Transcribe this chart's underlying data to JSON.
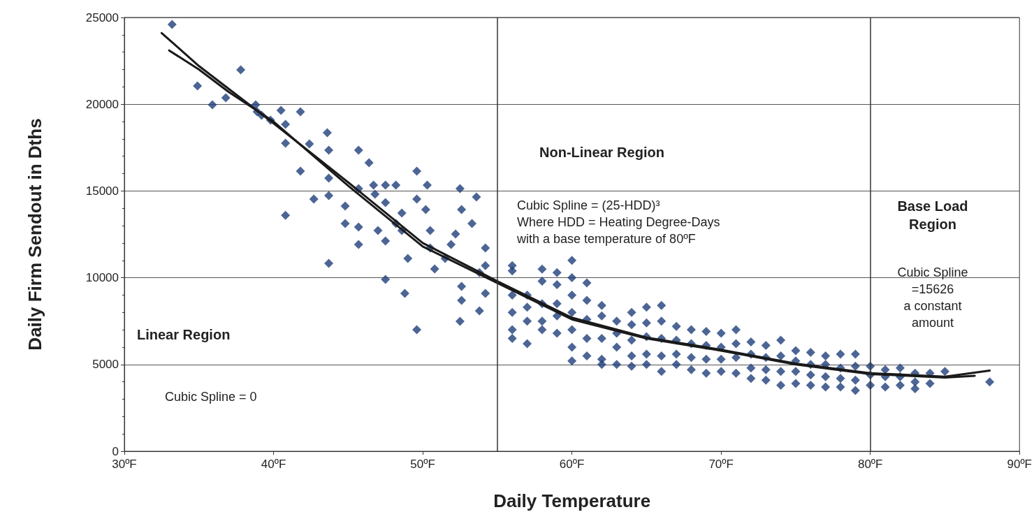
{
  "chart_data": {
    "type": "scatter",
    "xlabel": "Daily Temperature",
    "ylabel": "Daily Firm Sendout in Dths",
    "xlim": [
      30,
      90
    ],
    "xticks": [
      {
        "value": 30,
        "label": "30ºF"
      },
      {
        "value": 40,
        "label": "40ºF"
      },
      {
        "value": 50,
        "label": "50ºF"
      },
      {
        "value": 60,
        "label": "60ºF"
      },
      {
        "value": 70,
        "label": "70ºF"
      },
      {
        "value": 80,
        "label": "80ºF"
      },
      {
        "value": 90,
        "label": "90ºF"
      }
    ],
    "ylim": [
      0,
      25000
    ],
    "yticks": [
      0,
      5000,
      10000,
      15000,
      20000,
      25000
    ],
    "grid": "y",
    "ref_lines": [
      {
        "axis": "x",
        "value": 55,
        "color": "#333333"
      },
      {
        "axis": "x",
        "value": 80,
        "color": "#333333"
      }
    ],
    "annotations": [
      "Non-Linear Region",
      "Cubic Spline = (25-HDD)³\nWhere HDD = Heating Degree-Days\nwith a base temperature of 80ºF",
      "Base Load\nRegion",
      "Cubic Spline\n=15626\na constant\namount",
      "Linear Region",
      "Cubic Spline = 0"
    ],
    "series": [
      {
        "color": "#1f3f7a",
        "marker": "diamond",
        "x": [
          33.2,
          34.9,
          35.9,
          36.8,
          37.8,
          38.8,
          38.9,
          39.2,
          39.8,
          40.5,
          40.8,
          41.8,
          40.8,
          40.8,
          41.8,
          42.4,
          42.7,
          43.6,
          43.7,
          43.7,
          43.7,
          43.7,
          44.8,
          44.8,
          45.7,
          45.7,
          45.7,
          45.7,
          46.4,
          46.7,
          46.8,
          47,
          47.5,
          47.5,
          47.5,
          47.5,
          48.2,
          48.2,
          48.6,
          48.6,
          48.8,
          49,
          49.6,
          49.6,
          49.6,
          50.3,
          50.2,
          50.5,
          50.5,
          50.8,
          51.5,
          51.9,
          52.2,
          52.5,
          52.5,
          52.6,
          52.6,
          52.6,
          53.3,
          53.6,
          53.8,
          54.2,
          54.2,
          54.2,
          53.8,
          56,
          56,
          56,
          56,
          56,
          56,
          57,
          57,
          57,
          57,
          58,
          58,
          58,
          58,
          58,
          59,
          59,
          59,
          59,
          59,
          60,
          60,
          60,
          60,
          60,
          60,
          60,
          61,
          61,
          61,
          61,
          61,
          62,
          62,
          62,
          62,
          62,
          63,
          63,
          63,
          63,
          64,
          64,
          64,
          64,
          64,
          65,
          65,
          65,
          65,
          65,
          66,
          66,
          66,
          66,
          66,
          67,
          67,
          67,
          67,
          68,
          68,
          68,
          68,
          69,
          69,
          69,
          69,
          70,
          70,
          70,
          70,
          71,
          71,
          71,
          71,
          72,
          72,
          72,
          72,
          73,
          73,
          73,
          73,
          74,
          74,
          74,
          74,
          75,
          75,
          75,
          75,
          76,
          76,
          76,
          76,
          77,
          77,
          77,
          77,
          78,
          78,
          78,
          78,
          79,
          79,
          79,
          79,
          80,
          80,
          80,
          81,
          81,
          81,
          82,
          82,
          82,
          83,
          83,
          83,
          84,
          84,
          85,
          88
        ],
        "values": [
          24600,
          21050,
          19970,
          20370,
          21980,
          19970,
          19570,
          19360,
          19080,
          19650,
          18840,
          19570,
          17750,
          13600,
          16140,
          17710,
          14530,
          18360,
          17350,
          15740,
          14730,
          10830,
          14130,
          13120,
          17350,
          15140,
          12920,
          11920,
          16630,
          15340,
          14810,
          12720,
          15340,
          14330,
          9900,
          12120,
          13120,
          15340,
          13730,
          12720,
          9100,
          11110,
          14530,
          16140,
          7000,
          15340,
          13930,
          12720,
          11720,
          10510,
          11110,
          11920,
          12520,
          15140,
          7490,
          13930,
          9500,
          8700,
          13120,
          14650,
          10300,
          11710,
          10700,
          9100,
          8090,
          10700,
          10400,
          9000,
          8000,
          7000,
          6500,
          9000,
          8300,
          7500,
          6200,
          10500,
          9800,
          8500,
          7500,
          7000,
          10300,
          9600,
          8500,
          7800,
          6800,
          11000,
          10000,
          9000,
          8000,
          7000,
          6000,
          5200,
          9700,
          8700,
          7600,
          6500,
          5500,
          8400,
          7800,
          6500,
          5300,
          5000,
          7500,
          6800,
          6000,
          5000,
          8000,
          7300,
          6400,
          5500,
          4900,
          8300,
          7400,
          6600,
          5600,
          5000,
          8400,
          7500,
          6500,
          5500,
          4600,
          7200,
          6400,
          5600,
          5000,
          7000,
          6200,
          5400,
          4700,
          6900,
          6100,
          5300,
          4500,
          6800,
          6000,
          5300,
          4600,
          7000,
          6200,
          5400,
          4500,
          6300,
          5600,
          4800,
          4200,
          6100,
          5400,
          4700,
          4100,
          6400,
          5500,
          4600,
          3800,
          5800,
          5200,
          4600,
          3900,
          5700,
          5000,
          4400,
          3800,
          5500,
          5000,
          4300,
          3700,
          5600,
          4800,
          4200,
          3700,
          5600,
          4900,
          4100,
          3500,
          4900,
          4400,
          3800,
          4700,
          4300,
          3700,
          4800,
          4300,
          3800,
          4500,
          4000,
          3600,
          4500,
          3900,
          4600,
          4000
        ]
      },
      {
        "type": "line",
        "color": "#1a1a1a",
        "marker": "none",
        "x": [
          32.5,
          35,
          40,
          45,
          50,
          55,
          60,
          65,
          70,
          75,
          80,
          85,
          88
        ],
        "values": [
          24100,
          22200,
          18900,
          15500,
          12000,
          9800,
          7700,
          6550,
          5850,
          5050,
          4500,
          4300,
          4650
        ]
      },
      {
        "type": "line",
        "color": "#1a1a1a",
        "marker": "none",
        "x": [
          33,
          35,
          37,
          40,
          45,
          50,
          55,
          60,
          65,
          70,
          75,
          80,
          85,
          87
        ],
        "values": [
          23100,
          22000,
          20700,
          19000,
          15300,
          11800,
          9700,
          7600,
          6500,
          5800,
          5000,
          4450,
          4250,
          4350
        ]
      }
    ]
  }
}
